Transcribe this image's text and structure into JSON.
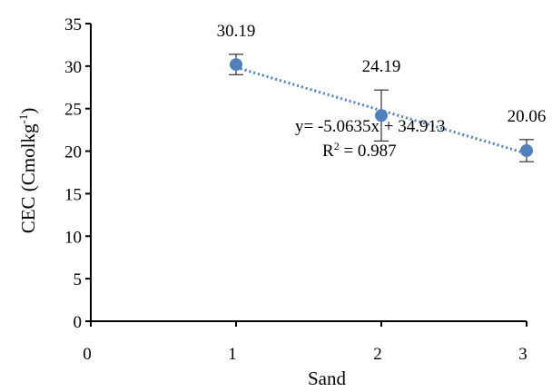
{
  "chart_data": {
    "type": "scatter",
    "xlabel": "Sand",
    "ylabel": "CEC (Cmolkg",
    "ylabel_sup": "-1",
    "ylabel_close": ")",
    "xlim": [
      0,
      3
    ],
    "ylim": [
      0,
      35
    ],
    "xticks": [
      0,
      1,
      2,
      3
    ],
    "yticks": [
      0,
      5,
      10,
      15,
      20,
      25,
      30,
      35
    ],
    "grid": false,
    "points": [
      {
        "x": 1,
        "y": 30.19,
        "err": 1.2,
        "label": "30.19"
      },
      {
        "x": 2,
        "y": 24.19,
        "err": 3.0,
        "label": "24.19"
      },
      {
        "x": 3,
        "y": 20.06,
        "err": 1.3,
        "label": "20.06"
      }
    ],
    "trendline": {
      "slope": -5.0635,
      "intercept": 34.913,
      "style": "dotted",
      "equation": "y= -5.0635x + 34.913",
      "r2_prefix": "R",
      "r2_sup": "2",
      "r2_value": " = 0.987"
    },
    "marker_color": "#4f81bd",
    "trend_color": "#4f81bd"
  }
}
